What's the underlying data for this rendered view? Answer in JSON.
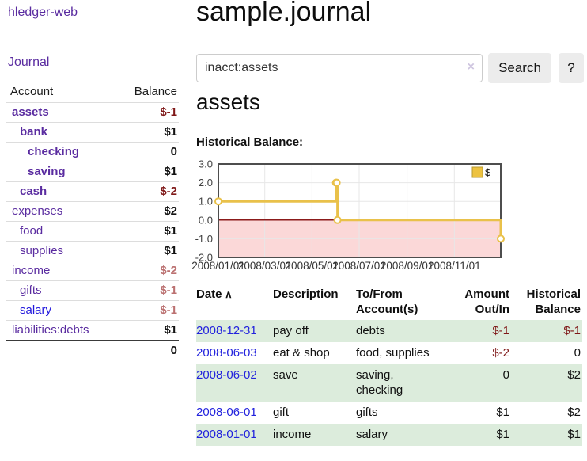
{
  "colors": {
    "link_purple": "#5a2ca0",
    "link_blue": "#2218dd",
    "negative_strong": "#7f1818",
    "negative_muted": "#bb7171",
    "row_stripe_green": "#dcecdc",
    "button_gray": "#ececec"
  },
  "sidebar": {
    "brand": "hledger-web",
    "journal_label": "Journal",
    "accounts_header": {
      "account": "Account",
      "balance": "Balance"
    },
    "accounts": [
      {
        "name": "assets",
        "balance": "$-1",
        "indent": 1,
        "bold": true,
        "link_color": "purple"
      },
      {
        "name": "bank",
        "balance": "$1",
        "indent": 2,
        "bold": true,
        "link_color": "purple"
      },
      {
        "name": "checking",
        "balance": "0",
        "indent": 3,
        "bold": true,
        "link_color": "purple"
      },
      {
        "name": "saving",
        "balance": "$1",
        "indent": 3,
        "bold": true,
        "link_color": "purple"
      },
      {
        "name": "cash",
        "balance": "$-2",
        "indent": 2,
        "bold": true,
        "link_color": "purple"
      },
      {
        "name": "expenses",
        "balance": "$2",
        "indent": 1,
        "bold": false,
        "link_color": "purple"
      },
      {
        "name": "food",
        "balance": "$1",
        "indent": 2,
        "bold": false,
        "link_color": "purple"
      },
      {
        "name": "supplies",
        "balance": "$1",
        "indent": 2,
        "bold": false,
        "link_color": "purple"
      },
      {
        "name": "income",
        "balance": "$-2",
        "indent": 1,
        "bold": false,
        "link_color": "purple"
      },
      {
        "name": "gifts",
        "balance": "$-1",
        "indent": 2,
        "bold": false,
        "link_color": "purple"
      },
      {
        "name": "salary",
        "balance": "$-1",
        "indent": 2,
        "bold": false,
        "link_color": "blue"
      },
      {
        "name": "liabilities:debts",
        "balance": "$1",
        "indent": 1,
        "bold": false,
        "link_color": "purple"
      }
    ],
    "total": "0"
  },
  "main": {
    "title": "sample.journal",
    "search": {
      "value": "inacct:assets",
      "clear_glyph": "×",
      "button_label": "Search",
      "help_label": "?"
    },
    "account_heading": "assets",
    "chart_label": "Historical Balance:"
  },
  "chart_data": {
    "type": "line",
    "step": true,
    "title": "Historical Balance",
    "series": [
      {
        "name": "$",
        "points": [
          [
            "2008-01-01",
            1
          ],
          [
            "2008-06-01",
            2
          ],
          [
            "2008-06-02",
            2
          ],
          [
            "2008-06-03",
            0
          ],
          [
            "2008-12-31",
            -1
          ]
        ]
      }
    ],
    "xlim": [
      "2008-01-01",
      "2008-12-31"
    ],
    "ylim": [
      -2,
      3
    ],
    "y_ticks": [
      3.0,
      2.0,
      1.0,
      0.0,
      -1.0,
      -2.0
    ],
    "x_ticks": [
      {
        "date": "2008-01-01",
        "label": "2008/01/01"
      },
      {
        "date": "2008-03-01",
        "label": "2008/03/01"
      },
      {
        "date": "2008-05-01",
        "label": "2008/05/01"
      },
      {
        "date": "2008-07-01",
        "label": "2008/07/01"
      },
      {
        "date": "2008-09-01",
        "label": "2008/09/01"
      },
      {
        "date": "2008-11-01",
        "label": "2008/11/01"
      }
    ],
    "grid": true,
    "negative_region_shaded": true,
    "legend": {
      "label": "$",
      "position": "top-right"
    },
    "colors": {
      "line": "#e9c14a",
      "marker_fill": "#ffffff",
      "negative_fill": "#fbd8d8",
      "zero_line": "#8b1a1a",
      "grid": "#e7e7e7",
      "border": "#4d4d4d",
      "legend_fill": "#edc240",
      "legend_border": "#b89a30"
    }
  },
  "register": {
    "columns": [
      {
        "lines": [
          "Date"
        ],
        "sort_indicator": "∧",
        "align": "left"
      },
      {
        "lines": [
          "Description"
        ],
        "align": "left"
      },
      {
        "lines": [
          "To/From",
          "Account(s)"
        ],
        "align": "left"
      },
      {
        "lines": [
          "Amount",
          "Out/In"
        ],
        "align": "right"
      },
      {
        "lines": [
          "Historical",
          "Balance"
        ],
        "align": "right"
      }
    ],
    "rows": [
      {
        "date": "2008-12-31",
        "description": "pay off",
        "accounts": "debts",
        "amount": "$-1",
        "balance": "$-1"
      },
      {
        "date": "2008-06-03",
        "description": "eat & shop",
        "accounts": "food, supplies",
        "amount": "$-2",
        "balance": "0"
      },
      {
        "date": "2008-06-02",
        "description": "save",
        "accounts": "saving, checking",
        "amount": "0",
        "balance": "$2"
      },
      {
        "date": "2008-06-01",
        "description": "gift",
        "accounts": "gifts",
        "amount": "$1",
        "balance": "$2"
      },
      {
        "date": "2008-01-01",
        "description": "income",
        "accounts": "salary",
        "amount": "$1",
        "balance": "$1"
      }
    ]
  }
}
